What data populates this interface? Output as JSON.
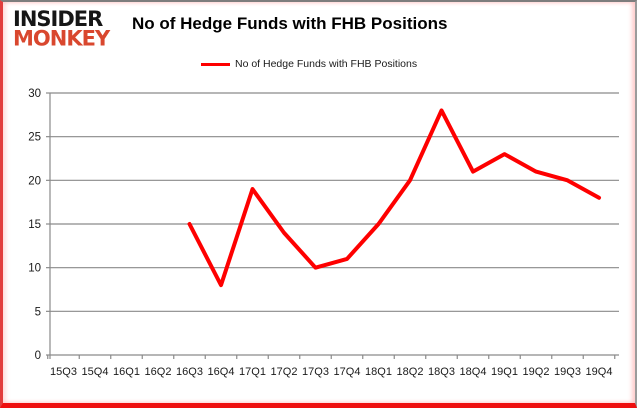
{
  "logo": {
    "line1": "INSIDER",
    "line2": "MONKEY",
    "line1_color": "#161616",
    "line2_color": "#d9472e"
  },
  "header": {
    "title": "No of Hedge Funds with FHB Positions"
  },
  "legend": {
    "label": "No of Hedge Funds with FHB Positions"
  },
  "colors": {
    "series_line": "#fe0000",
    "grid": "#8a8a8a",
    "axis_text": "#1a1a1a",
    "frame_bottom": "#ee0f0f"
  },
  "chart_data": {
    "type": "line",
    "title": "No of Hedge Funds with FHB Positions",
    "xlabel": "",
    "ylabel": "",
    "categories": [
      "15Q3",
      "15Q4",
      "16Q1",
      "16Q2",
      "16Q3",
      "16Q4",
      "17Q1",
      "17Q2",
      "17Q3",
      "17Q4",
      "18Q1",
      "18Q2",
      "18Q3",
      "18Q4",
      "19Q1",
      "19Q2",
      "19Q3",
      "19Q4"
    ],
    "series": [
      {
        "name": "No of Hedge Funds with FHB Positions",
        "color": "#fe0000",
        "values": [
          null,
          null,
          null,
          null,
          15,
          8,
          19,
          14,
          10,
          11,
          15,
          20,
          28,
          21,
          23,
          21,
          20,
          18
        ]
      }
    ],
    "ylim": [
      0,
      30
    ],
    "yticks": [
      0,
      5,
      10,
      15,
      20,
      25,
      30
    ],
    "grid": true,
    "legend_position": "top-center"
  }
}
